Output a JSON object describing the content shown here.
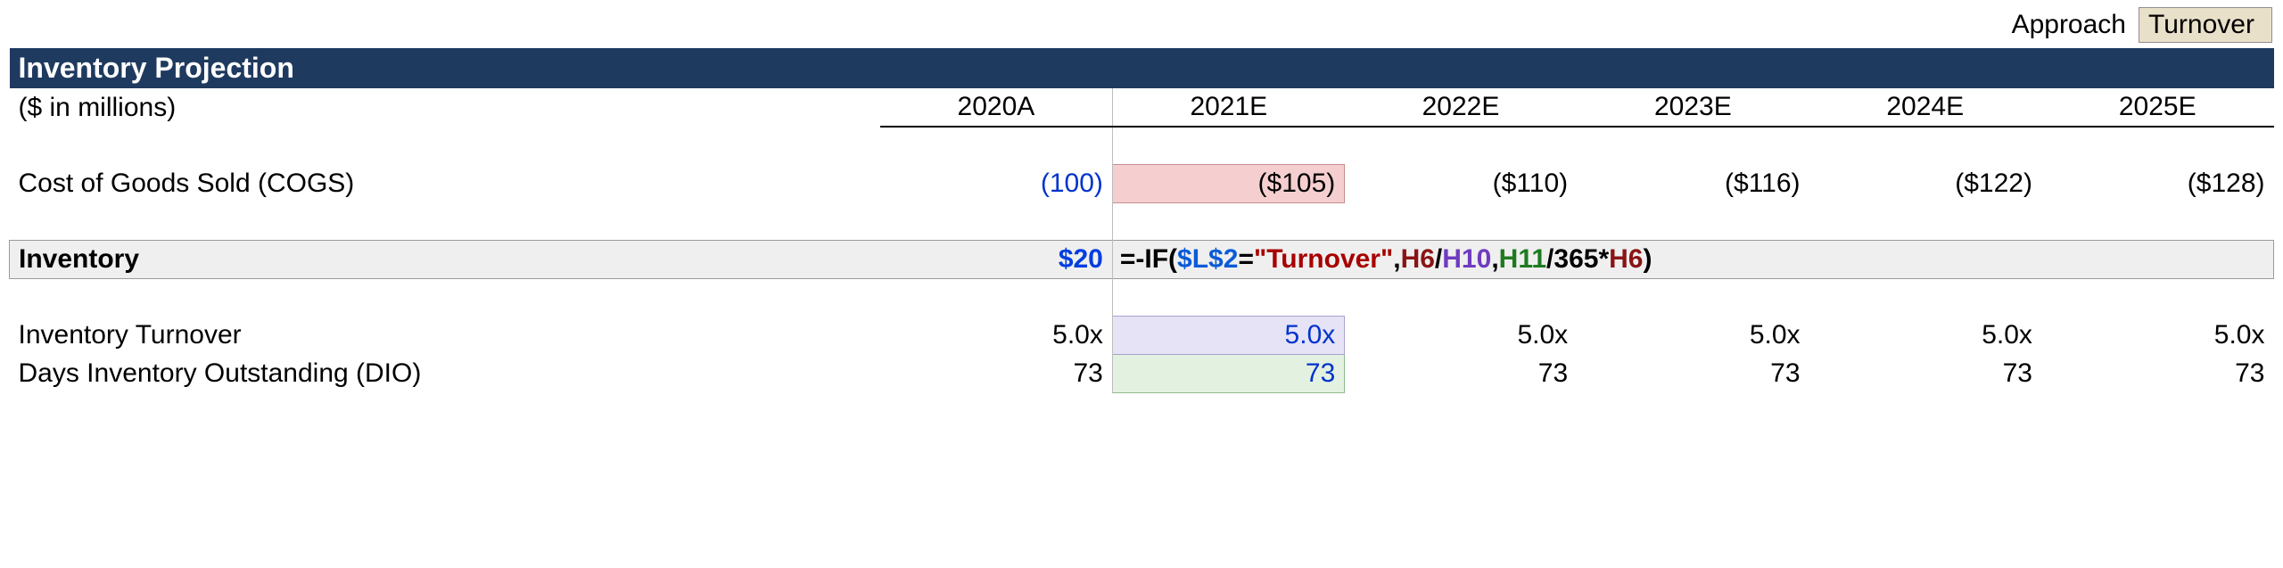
{
  "approach": {
    "label": "Approach",
    "value": "Turnover"
  },
  "title": "Inventory Projection",
  "units": "($ in millions)",
  "years": [
    "2020A",
    "2021E",
    "2022E",
    "2023E",
    "2024E",
    "2025E"
  ],
  "rows": {
    "cogs": {
      "label": "Cost of Goods Sold (COGS)",
      "v2020": "(100)",
      "v2021": "($105)",
      "v2022": "($110)",
      "v2023": "($116)",
      "v2024": "($122)",
      "v2025": "($128)"
    },
    "inventory": {
      "label": "Inventory",
      "v2020": "$20"
    },
    "turnover": {
      "label": "Inventory Turnover",
      "v2020": "5.0x",
      "v2021": "5.0x",
      "v2022": "5.0x",
      "v2023": "5.0x",
      "v2024": "5.0x",
      "v2025": "5.0x"
    },
    "dio": {
      "label": "Days Inventory Outstanding (DIO)",
      "v2020": "73",
      "v2021": "73",
      "v2022": "73",
      "v2023": "73",
      "v2024": "73",
      "v2025": "73"
    }
  },
  "formula": {
    "p1": "=-IF(",
    "abs": "$L$2",
    "p2": "=",
    "str": "\"Turnover\"",
    "p3": ",",
    "ref_a": "H6",
    "p4": "/",
    "ref_b": "H10",
    "p5": ",",
    "ref_c": "H11",
    "p6": "/",
    "lit": "365",
    "p7": "*",
    "ref_d": "H6",
    "p8": ")"
  },
  "colors": {
    "title_bg": "#1f3a5f",
    "title_fg": "#ffffff",
    "inv_row_bg": "#efefef",
    "pink_bg": "#f5cfd0",
    "lilac_bg": "#e5e3f5",
    "green_bg": "#e3f1e0",
    "bracket_blue": "#0033cc"
  }
}
